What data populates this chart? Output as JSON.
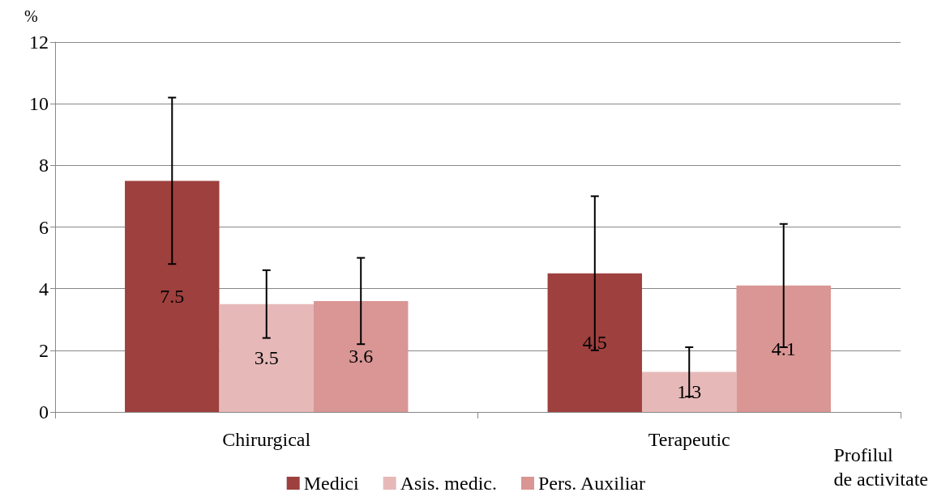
{
  "chart_data": {
    "type": "bar",
    "ylabel": "%",
    "xlabel": "Profilul\nde activitate",
    "categories": [
      "Chirurgical",
      "Terapeutic"
    ],
    "series": [
      {
        "name": "Medici",
        "color": "#9e403e",
        "values": [
          7.5,
          4.5
        ],
        "errors": [
          [
            4.8,
            10.2
          ],
          [
            2.0,
            7.0
          ]
        ]
      },
      {
        "name": "Asis. medic.",
        "color": "#e6b9b8",
        "values": [
          3.5,
          1.3
        ],
        "errors": [
          [
            2.4,
            4.6
          ],
          [
            0.5,
            2.1
          ]
        ]
      },
      {
        "name": "Pers. Auxiliar",
        "color": "#d99694",
        "values": [
          3.6,
          4.1
        ],
        "errors": [
          [
            2.2,
            5.0
          ],
          [
            2.1,
            6.1
          ]
        ]
      }
    ],
    "ylim": [
      0,
      12
    ],
    "yticks": [
      0,
      2,
      4,
      6,
      8,
      10,
      12
    ],
    "grid": "y",
    "legend": "bottom",
    "data_labels": true
  }
}
